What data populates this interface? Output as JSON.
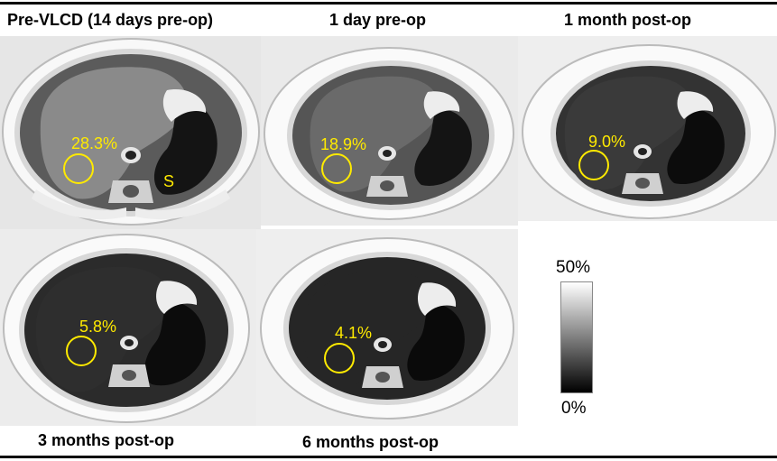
{
  "figure": {
    "roi_color": "#ffea00",
    "panels": [
      {
        "title": "Pre-VLCD (14 days pre-op)",
        "fat_fraction": "28.3%",
        "liver_shade": "#8a8a8a",
        "organ_label": "S"
      },
      {
        "title": "1 day pre-op",
        "fat_fraction": "18.9%",
        "liver_shade": "#6a6a6a"
      },
      {
        "title": "1 month post-op",
        "fat_fraction": "9.0%",
        "liver_shade": "#3a3a3a"
      },
      {
        "title": "3 months post-op",
        "fat_fraction": "5.8%",
        "liver_shade": "#2e2e2e"
      },
      {
        "title": "6 months post-op",
        "fat_fraction": "4.1%",
        "liver_shade": "#262626"
      }
    ],
    "colorbar": {
      "max_label": "50%",
      "min_label": "0%"
    }
  }
}
